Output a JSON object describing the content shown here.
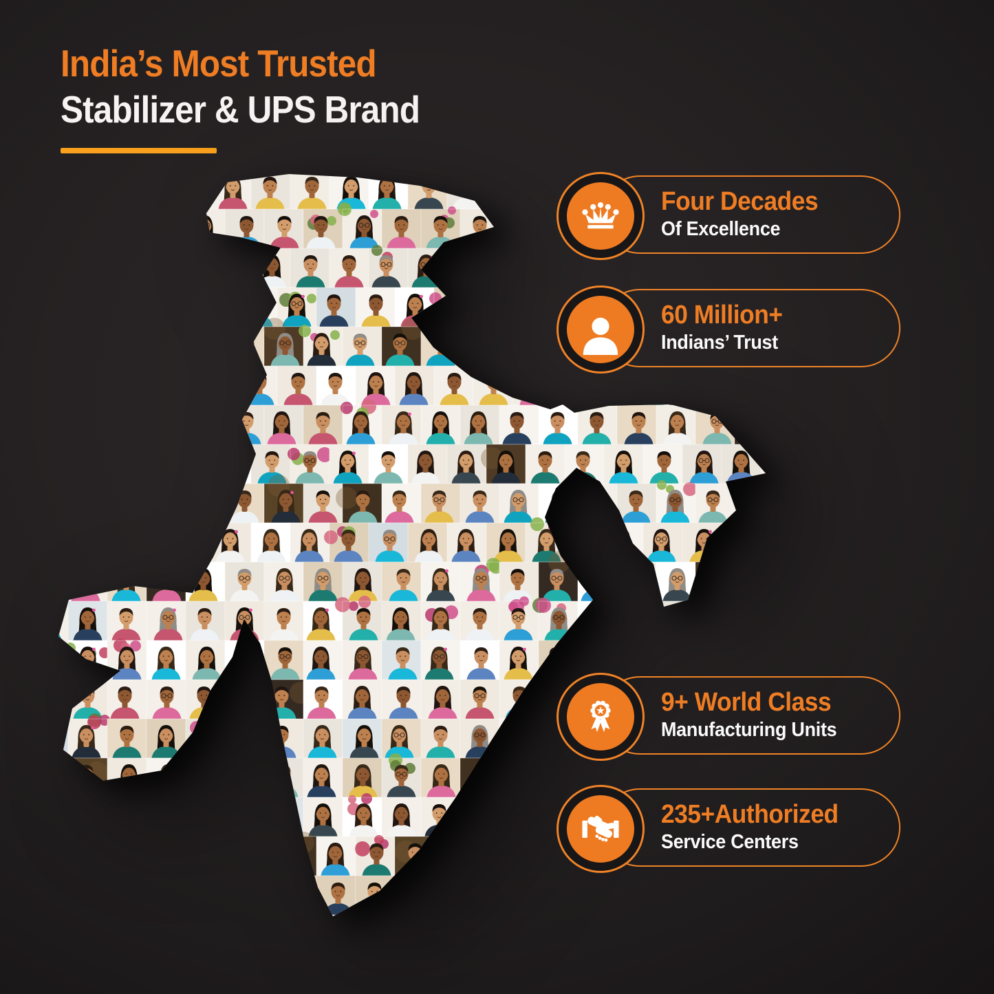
{
  "header": {
    "title_accent": "India’s Most Trusted",
    "title_main": "Stabilizer & UPS Brand"
  },
  "badges": [
    {
      "icon": "crown-icon",
      "line1": "Four Decades",
      "line2": "Of Excellence"
    },
    {
      "icon": "person-icon",
      "line1": "60 Million+",
      "line2": "Indians’ Trust"
    },
    {
      "icon": "award-ribbon-icon",
      "line1": "9+ World Class",
      "line2": "Manufacturing Units"
    },
    {
      "icon": "handshake-icon",
      "line1": "235+Authorized",
      "line2": "Service Centers"
    }
  ],
  "map": {
    "alt": "Map of India formed by a collage of portrait photos of smiling people"
  },
  "colors": {
    "accent_orange": "#ef7d24",
    "outline_orange": "#f08327",
    "badge_disc_orange": "#ee7b22",
    "underline_orange": "#f9a11c",
    "text_white": "#f6f4f3",
    "background_dark": "#211e1f"
  }
}
